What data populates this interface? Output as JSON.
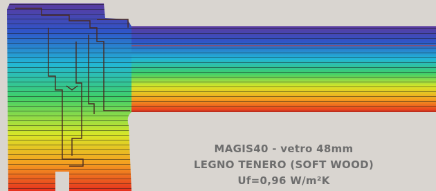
{
  "caption": {
    "line1": "MAGIS40 - vetro 48mm",
    "line2": "LEGNO TENERO (SOFT WOOD)",
    "line3": "Uf=0,96 W/m²K"
  }
}
